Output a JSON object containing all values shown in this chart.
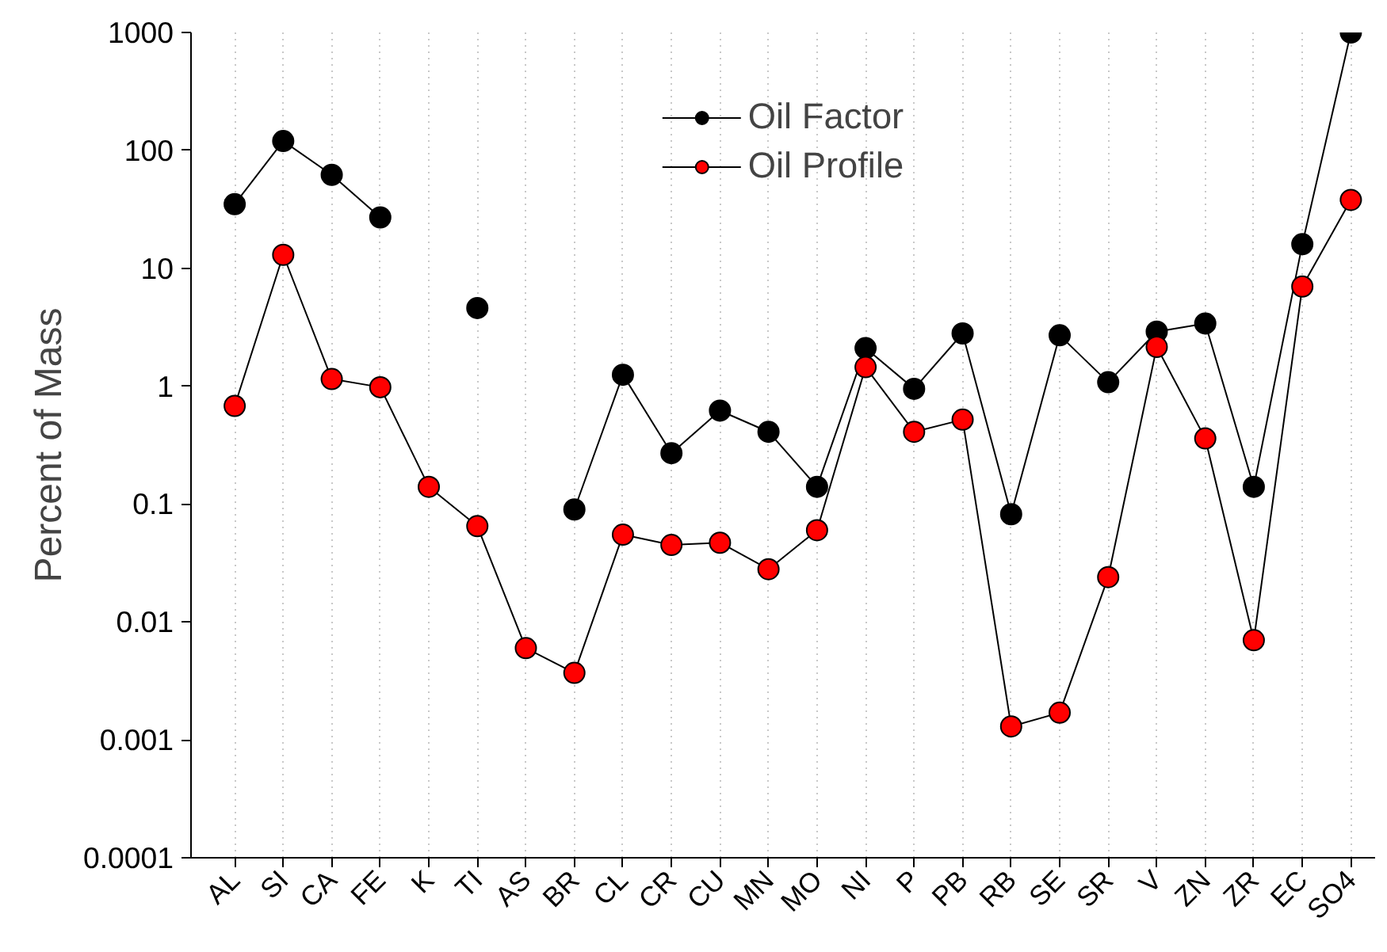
{
  "chart_data": {
    "type": "line",
    "ylabel": "Percent of Mass",
    "categories": [
      "AL",
      "SI",
      "CA",
      "FE",
      "K",
      "TI",
      "AS",
      "BR",
      "CL",
      "CR",
      "CU",
      "MN",
      "MO",
      "NI",
      "P",
      "PB",
      "RB",
      "SE",
      "SR",
      "V",
      "ZN",
      "ZR",
      "EC",
      "SO4"
    ],
    "series": [
      {
        "name": "Oil Factor",
        "color": "#000000",
        "values": [
          35,
          120,
          62,
          27,
          null,
          4.6,
          null,
          0.09,
          1.25,
          0.27,
          0.62,
          0.41,
          0.14,
          2.1,
          0.95,
          2.8,
          0.082,
          2.7,
          1.08,
          2.9,
          3.4,
          0.14,
          16,
          1000
        ]
      },
      {
        "name": "Oil Profile",
        "color": "#ff0000",
        "values": [
          0.68,
          13,
          1.15,
          0.98,
          0.14,
          0.065,
          0.006,
          0.0037,
          0.055,
          0.045,
          0.047,
          0.028,
          0.06,
          1.45,
          0.41,
          0.52,
          0.0013,
          0.0017,
          0.024,
          2.15,
          0.36,
          0.007,
          7,
          38
        ]
      }
    ],
    "log": "y",
    "ylim": [
      0.0001,
      1000
    ],
    "yticks": [
      0.0001,
      0.001,
      0.01,
      0.1,
      1,
      10,
      100,
      1000
    ],
    "grid": "x",
    "legend": "top",
    "marker": "circle",
    "line_style": "solid"
  }
}
